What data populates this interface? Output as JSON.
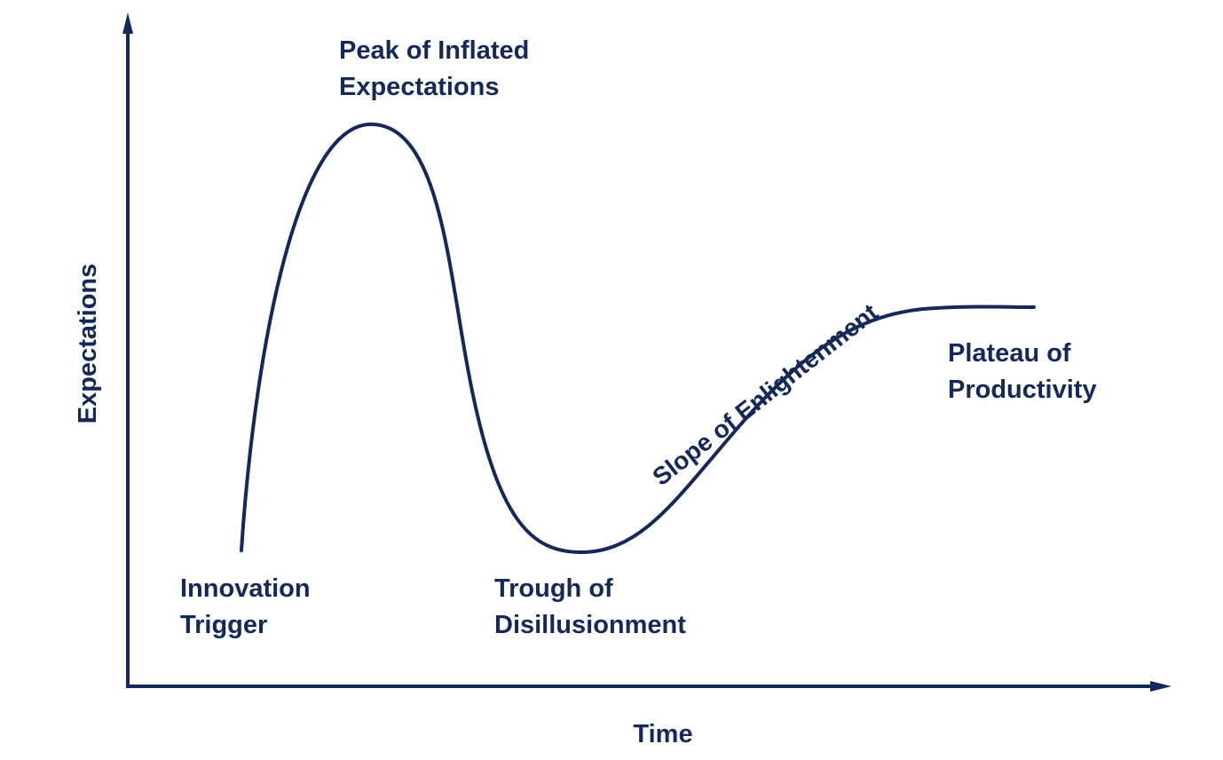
{
  "colors": {
    "ink": "#15285a",
    "background": "#ffffff"
  },
  "axes": {
    "y_label": "Expectations",
    "x_label": "Time"
  },
  "phases": {
    "innovation_trigger": [
      "Innovation",
      "Trigger"
    ],
    "peak": [
      "Peak of Inflated",
      "Expectations"
    ],
    "trough": [
      "Trough of",
      "Disillusionment"
    ],
    "slope": "Slope of Enlightenment",
    "plateau": [
      "Plateau of",
      "Productivity"
    ]
  }
}
